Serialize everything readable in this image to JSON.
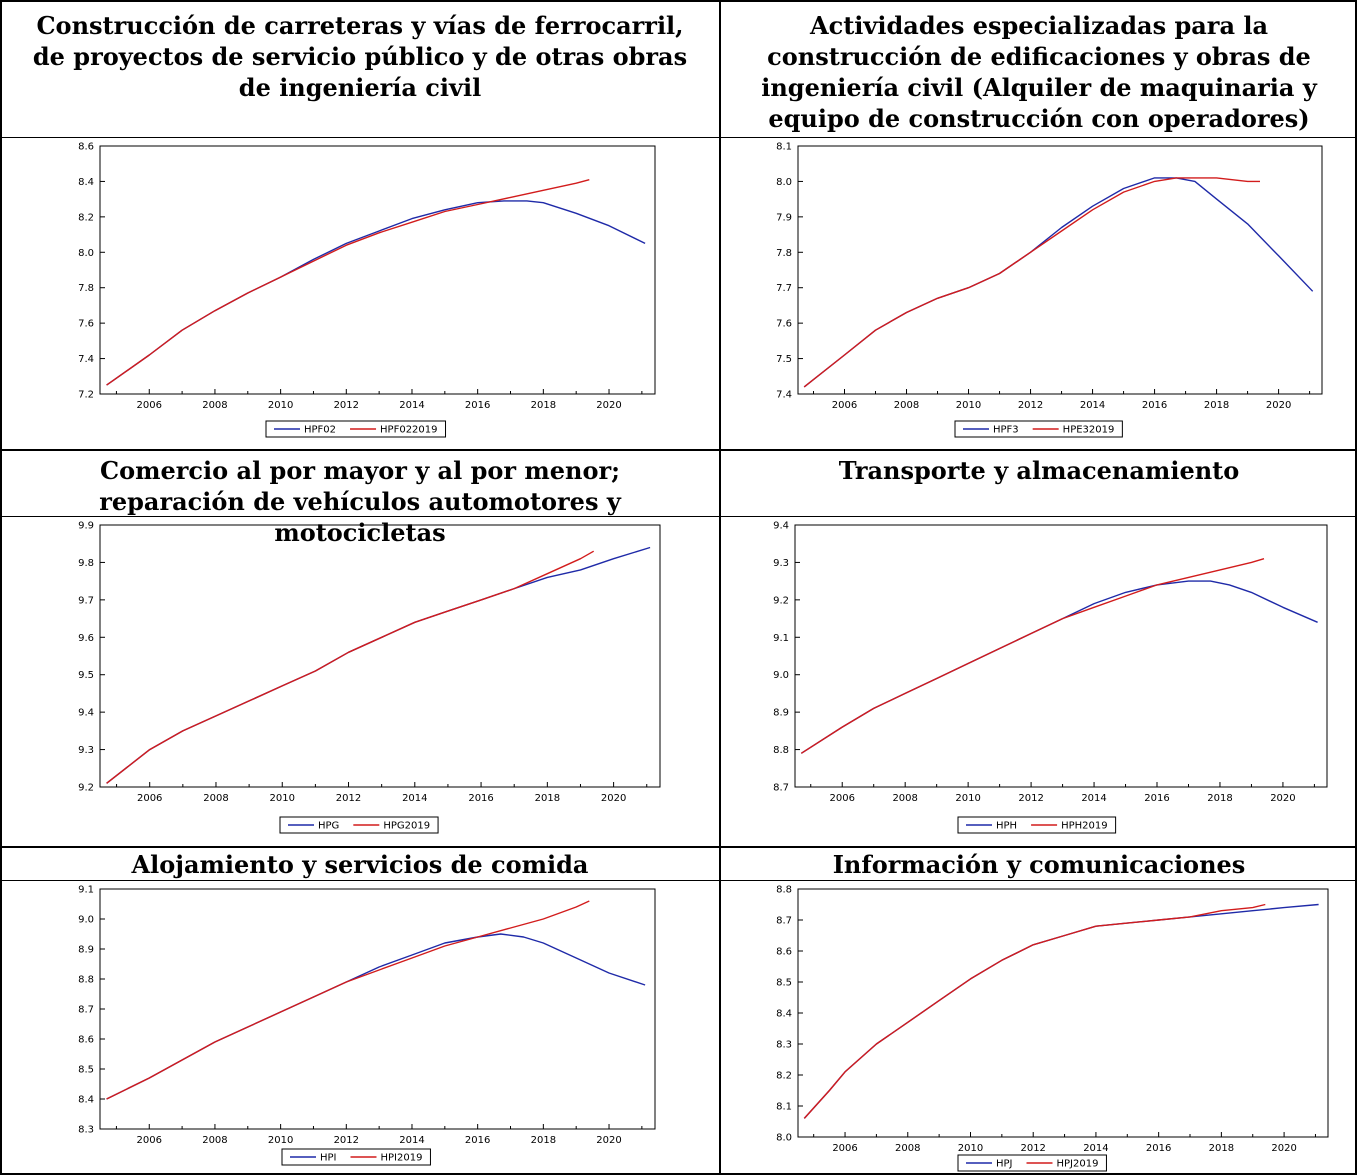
{
  "colors": {
    "series1": "#1f2aa8",
    "series2": "#d21c1c"
  },
  "chart_data": [
    {
      "type": "line",
      "title": "Construcción de carreteras y vías de ferrocarril, de proyectos de servicio público y de otras obras de ingeniería civil",
      "xlim": [
        2004.5,
        2021.4
      ],
      "ylim": [
        7.2,
        8.6
      ],
      "yticks": [
        "7.2",
        "7.4",
        "7.6",
        "7.8",
        "8.0",
        "8.2",
        "8.4",
        "8.6"
      ],
      "xticks": [
        "2006",
        "2008",
        "2010",
        "2012",
        "2014",
        "2016",
        "2018",
        "2020"
      ],
      "series": [
        {
          "name": "HPF02",
          "x": [
            2004.7,
            2006,
            2007,
            2008,
            2009,
            2010,
            2011,
            2012,
            2013,
            2014,
            2015,
            2016,
            2016.8,
            2017.5,
            2018,
            2019,
            2020,
            2021.1
          ],
          "values": [
            7.25,
            7.42,
            7.56,
            7.67,
            7.77,
            7.86,
            7.96,
            8.05,
            8.12,
            8.19,
            8.24,
            8.28,
            8.29,
            8.29,
            8.28,
            8.22,
            8.15,
            8.05
          ]
        },
        {
          "name": "HPF022019",
          "x": [
            2004.7,
            2006,
            2007,
            2008,
            2009,
            2010,
            2011,
            2012,
            2013,
            2014,
            2015,
            2016,
            2017,
            2018,
            2019,
            2019.4
          ],
          "values": [
            7.25,
            7.42,
            7.56,
            7.67,
            7.77,
            7.86,
            7.95,
            8.04,
            8.11,
            8.17,
            8.23,
            8.27,
            8.31,
            8.35,
            8.39,
            8.41
          ]
        }
      ]
    },
    {
      "type": "line",
      "title": "Actividades especializadas para la construcción de edificaciones y obras de ingeniería civil (Alquiler de maquinaria y equipo de construcción con operadores)",
      "xlim": [
        2004.5,
        2021.4
      ],
      "ylim": [
        7.4,
        8.1
      ],
      "yticks": [
        "7.4",
        "7.5",
        "7.6",
        "7.7",
        "7.8",
        "7.9",
        "8.0",
        "8.1"
      ],
      "xticks": [
        "2006",
        "2008",
        "2010",
        "2012",
        "2014",
        "2016",
        "2018",
        "2020"
      ],
      "series": [
        {
          "name": "HPF3",
          "x": [
            2004.7,
            2006,
            2007,
            2008,
            2009,
            2010,
            2011,
            2012,
            2013,
            2014,
            2015,
            2016,
            2016.7,
            2017.3,
            2018,
            2019,
            2020,
            2021.1
          ],
          "values": [
            7.42,
            7.51,
            7.58,
            7.63,
            7.67,
            7.7,
            7.74,
            7.8,
            7.87,
            7.93,
            7.98,
            8.01,
            8.01,
            8.0,
            7.95,
            7.88,
            7.79,
            7.69
          ]
        },
        {
          "name": "HPE32019",
          "x": [
            2004.7,
            2006,
            2007,
            2008,
            2009,
            2010,
            2011,
            2012,
            2013,
            2014,
            2015,
            2016,
            2016.7,
            2017.3,
            2018,
            2019,
            2019.4
          ],
          "values": [
            7.42,
            7.51,
            7.58,
            7.63,
            7.67,
            7.7,
            7.74,
            7.8,
            7.86,
            7.92,
            7.97,
            8.0,
            8.01,
            8.01,
            8.01,
            8.0,
            8.0
          ]
        }
      ]
    },
    {
      "type": "line",
      "title": "Comercio al por mayor y al por menor; reparación de vehículos automotores y motocicletas",
      "xlim": [
        2004.5,
        2021.4
      ],
      "ylim": [
        9.2,
        9.9
      ],
      "yticks": [
        "9.2",
        "9.3",
        "9.4",
        "9.5",
        "9.6",
        "9.7",
        "9.8",
        "9.9"
      ],
      "xticks": [
        "2006",
        "2008",
        "2010",
        "2012",
        "2014",
        "2016",
        "2018",
        "2020"
      ],
      "series": [
        {
          "name": "HPG",
          "x": [
            2004.7,
            2006,
            2007,
            2008,
            2009,
            2010,
            2011,
            2012,
            2013,
            2014,
            2015,
            2016,
            2017,
            2018,
            2019,
            2020,
            2021.1
          ],
          "values": [
            9.21,
            9.3,
            9.35,
            9.39,
            9.43,
            9.47,
            9.51,
            9.56,
            9.6,
            9.64,
            9.67,
            9.7,
            9.73,
            9.76,
            9.78,
            9.81,
            9.84
          ]
        },
        {
          "name": "HPG2019",
          "x": [
            2004.7,
            2006,
            2007,
            2008,
            2009,
            2010,
            2011,
            2012,
            2013,
            2014,
            2015,
            2016,
            2017,
            2018,
            2019,
            2019.4
          ],
          "values": [
            9.21,
            9.3,
            9.35,
            9.39,
            9.43,
            9.47,
            9.51,
            9.56,
            9.6,
            9.64,
            9.67,
            9.7,
            9.73,
            9.77,
            9.81,
            9.83
          ]
        }
      ]
    },
    {
      "type": "line",
      "title": "Transporte y almacenamiento",
      "xlim": [
        2004.5,
        2021.4
      ],
      "ylim": [
        8.7,
        9.4
      ],
      "yticks": [
        "8.7",
        "8.8",
        "8.9",
        "9.0",
        "9.1",
        "9.2",
        "9.3",
        "9.4"
      ],
      "xticks": [
        "2006",
        "2008",
        "2010",
        "2012",
        "2014",
        "2016",
        "2018",
        "2020"
      ],
      "series": [
        {
          "name": "HPH",
          "x": [
            2004.7,
            2006,
            2007,
            2008,
            2009,
            2010,
            2011,
            2012,
            2013,
            2014,
            2015,
            2016,
            2017,
            2017.7,
            2018.3,
            2019,
            2020,
            2021.1
          ],
          "values": [
            8.79,
            8.86,
            8.91,
            8.95,
            8.99,
            9.03,
            9.07,
            9.11,
            9.15,
            9.19,
            9.22,
            9.24,
            9.25,
            9.25,
            9.24,
            9.22,
            9.18,
            9.14
          ]
        },
        {
          "name": "HPH2019",
          "x": [
            2004.7,
            2006,
            2007,
            2008,
            2009,
            2010,
            2011,
            2012,
            2013,
            2014,
            2015,
            2016,
            2017,
            2018,
            2019,
            2019.4
          ],
          "values": [
            8.79,
            8.86,
            8.91,
            8.95,
            8.99,
            9.03,
            9.07,
            9.11,
            9.15,
            9.18,
            9.21,
            9.24,
            9.26,
            9.28,
            9.3,
            9.31
          ]
        }
      ]
    },
    {
      "type": "line",
      "title": "Alojamiento y servicios de comida",
      "xlim": [
        2004.5,
        2021.4
      ],
      "ylim": [
        8.3,
        9.1
      ],
      "yticks": [
        "8.3",
        "8.4",
        "8.5",
        "8.6",
        "8.7",
        "8.8",
        "8.9",
        "9.0",
        "9.1"
      ],
      "xticks": [
        "2006",
        "2008",
        "2010",
        "2012",
        "2014",
        "2016",
        "2018",
        "2020"
      ],
      "series": [
        {
          "name": "HPI",
          "x": [
            2004.7,
            2006,
            2007,
            2008,
            2009,
            2010,
            2011,
            2012,
            2013,
            2014,
            2015,
            2016,
            2016.7,
            2017.4,
            2018,
            2019,
            2020,
            2021.1
          ],
          "values": [
            8.4,
            8.47,
            8.53,
            8.59,
            8.64,
            8.69,
            8.74,
            8.79,
            8.84,
            8.88,
            8.92,
            8.94,
            8.95,
            8.94,
            8.92,
            8.87,
            8.82,
            8.78
          ]
        },
        {
          "name": "HPI2019",
          "x": [
            2004.7,
            2006,
            2007,
            2008,
            2009,
            2010,
            2011,
            2012,
            2013,
            2014,
            2015,
            2016,
            2017,
            2018,
            2019,
            2019.4
          ],
          "values": [
            8.4,
            8.47,
            8.53,
            8.59,
            8.64,
            8.69,
            8.74,
            8.79,
            8.83,
            8.87,
            8.91,
            8.94,
            8.97,
            9.0,
            9.04,
            9.06
          ]
        }
      ]
    },
    {
      "type": "line",
      "title": "Información y comunicaciones",
      "xlim": [
        2004.5,
        2021.4
      ],
      "ylim": [
        8.0,
        8.8
      ],
      "yticks": [
        "8.0",
        "8.1",
        "8.2",
        "8.3",
        "8.4",
        "8.5",
        "8.6",
        "8.7",
        "8.8"
      ],
      "xticks": [
        "2006",
        "2008",
        "2010",
        "2012",
        "2014",
        "2016",
        "2018",
        "2020"
      ],
      "series": [
        {
          "name": "HPJ",
          "x": [
            2004.7,
            2005.5,
            2006,
            2007,
            2008,
            2009,
            2010,
            2011,
            2012,
            2013,
            2014,
            2015,
            2016,
            2017,
            2018,
            2019,
            2020,
            2021.1
          ],
          "values": [
            8.06,
            8.15,
            8.21,
            8.3,
            8.37,
            8.44,
            8.51,
            8.57,
            8.62,
            8.65,
            8.68,
            8.69,
            8.7,
            8.71,
            8.72,
            8.73,
            8.74,
            8.75
          ]
        },
        {
          "name": "HPJ2019",
          "x": [
            2004.7,
            2005.5,
            2006,
            2007,
            2008,
            2009,
            2010,
            2011,
            2012,
            2013,
            2014,
            2015,
            2016,
            2017,
            2018,
            2019,
            2019.4
          ],
          "values": [
            8.06,
            8.15,
            8.21,
            8.3,
            8.37,
            8.44,
            8.51,
            8.57,
            8.62,
            8.65,
            8.68,
            8.69,
            8.7,
            8.71,
            8.73,
            8.74,
            8.75
          ]
        }
      ]
    }
  ]
}
